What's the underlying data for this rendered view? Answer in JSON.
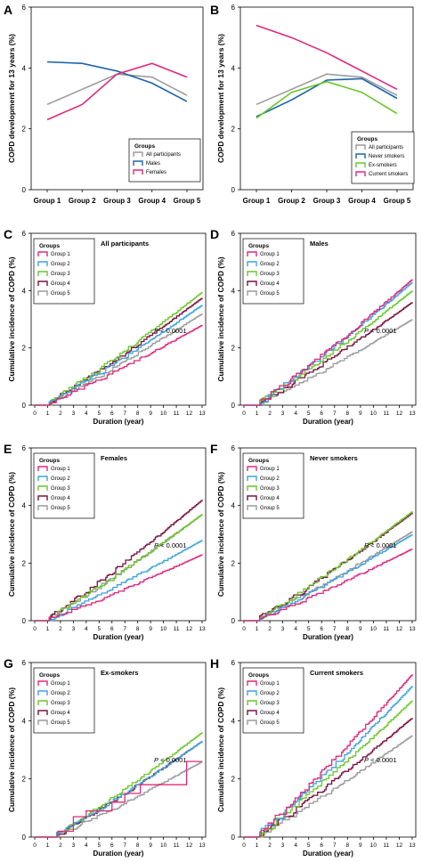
{
  "colors": {
    "all_participants": "#9a9a9a",
    "males": "#1a63a8",
    "females": "#e0287a",
    "never_smokers": "#1a63a8",
    "ex_smokers": "#6cc62a",
    "current_smokers": "#e0287a",
    "group1": "#e0287a",
    "group2": "#3da3dc",
    "group3": "#6cc62a",
    "group4": "#7a1040",
    "group5": "#9a9a9a"
  },
  "chart_data": [
    {
      "panel": "A",
      "type": "line",
      "ylabel": "COPD development for 13 years (%)",
      "categories": [
        "Group 1",
        "Group 2",
        "Group 3",
        "Group 4",
        "Group 5"
      ],
      "ylim": [
        0,
        6
      ],
      "yticks": [
        "0",
        "2",
        "4",
        "6"
      ],
      "legend": {
        "title": "Groups",
        "position": "bottom-right"
      },
      "series": [
        {
          "name": "All participants",
          "color_key": "all_participants",
          "values": [
            2.8,
            3.3,
            3.8,
            3.7,
            3.1
          ]
        },
        {
          "name": "Males",
          "color_key": "males",
          "values": [
            4.2,
            4.15,
            3.9,
            3.5,
            2.9
          ]
        },
        {
          "name": "Females",
          "color_key": "females",
          "values": [
            2.3,
            2.8,
            3.8,
            4.15,
            3.7
          ]
        }
      ]
    },
    {
      "panel": "B",
      "type": "line",
      "ylabel": "COPD development for 13 years (%)",
      "categories": [
        "Group 1",
        "Group 2",
        "Group 3",
        "Group 4",
        "Group 5"
      ],
      "ylim": [
        0,
        6
      ],
      "yticks": [
        "0",
        "2",
        "4",
        "6"
      ],
      "legend": {
        "title": "Groups",
        "position": "bottom-right"
      },
      "series": [
        {
          "name": "All participants",
          "color_key": "all_participants",
          "values": [
            2.8,
            3.3,
            3.8,
            3.7,
            3.1
          ]
        },
        {
          "name": "Never smokers",
          "color_key": "never_smokers",
          "values": [
            2.4,
            2.95,
            3.6,
            3.65,
            3.0
          ]
        },
        {
          "name": "Ex-smokers",
          "color_key": "ex_smokers",
          "values": [
            2.35,
            3.2,
            3.55,
            3.2,
            2.5
          ]
        },
        {
          "name": "Current smokers",
          "color_key": "current_smokers",
          "values": [
            5.4,
            5.0,
            4.5,
            3.9,
            3.3
          ]
        }
      ]
    },
    {
      "panel": "C",
      "type": "line",
      "subtitle": "All participants",
      "xlabel": "Duration (year)",
      "ylabel": "Cumulative incidence of COPD (%)",
      "xlim": [
        0,
        13
      ],
      "ylim": [
        0,
        6
      ],
      "xticks": [
        "0",
        "1",
        "2",
        "3",
        "4",
        "5",
        "6",
        "7",
        "8",
        "9",
        "10",
        "11",
        "12",
        "13"
      ],
      "yticks": [
        "0",
        "2",
        "4",
        "6"
      ],
      "annotation": "P < 0.0001",
      "legend": {
        "title": "Groups",
        "position": "top-left"
      },
      "series": [
        {
          "name": "Group 1",
          "color_key": "group1",
          "onset": 0.9,
          "final": 2.8
        },
        {
          "name": "Group 2",
          "color_key": "group2",
          "onset": 0.9,
          "final": 3.5
        },
        {
          "name": "Group 3",
          "color_key": "group3",
          "onset": 0.9,
          "final": 3.95
        },
        {
          "name": "Group 4",
          "color_key": "group4",
          "onset": 0.9,
          "final": 3.75
        },
        {
          "name": "Group 5",
          "color_key": "group5",
          "onset": 0.9,
          "final": 3.2
        }
      ]
    },
    {
      "panel": "D",
      "type": "line",
      "subtitle": "Males",
      "xlabel": "Duration (year)",
      "ylabel": "Cumulative incidence of COPD (%)",
      "xlim": [
        0,
        13
      ],
      "ylim": [
        0,
        6
      ],
      "xticks": [
        "0",
        "1",
        "2",
        "3",
        "4",
        "5",
        "6",
        "7",
        "8",
        "9",
        "10",
        "11",
        "12",
        "13"
      ],
      "yticks": [
        "0",
        "2",
        "4",
        "6"
      ],
      "annotation": "P < 0.0001",
      "legend": {
        "title": "Groups",
        "position": "top-left"
      },
      "series": [
        {
          "name": "Group 1",
          "color_key": "group1",
          "onset": 1.0,
          "final": 4.4
        },
        {
          "name": "Group 2",
          "color_key": "group2",
          "onset": 1.0,
          "final": 4.3
        },
        {
          "name": "Group 3",
          "color_key": "group3",
          "onset": 1.0,
          "final": 4.0
        },
        {
          "name": "Group 4",
          "color_key": "group4",
          "onset": 1.0,
          "final": 3.6
        },
        {
          "name": "Group 5",
          "color_key": "group5",
          "onset": 1.0,
          "final": 3.0
        }
      ]
    },
    {
      "panel": "E",
      "type": "line",
      "subtitle": "Females",
      "xlabel": "Duration (year)",
      "ylabel": "Cumulative incidence of COPD (%)",
      "xlim": [
        0,
        13
      ],
      "ylim": [
        0,
        6
      ],
      "xticks": [
        "0",
        "1",
        "2",
        "3",
        "4",
        "5",
        "6",
        "7",
        "8",
        "9",
        "10",
        "11",
        "12",
        "13"
      ],
      "yticks": [
        "0",
        "2",
        "4",
        "6"
      ],
      "annotation": "P < 0.0001",
      "legend": {
        "title": "Groups",
        "position": "top-left"
      },
      "series": [
        {
          "name": "Group 1",
          "color_key": "group1",
          "onset": 0.9,
          "final": 2.3
        },
        {
          "name": "Group 2",
          "color_key": "group2",
          "onset": 0.9,
          "final": 2.8
        },
        {
          "name": "Group 3",
          "color_key": "group3",
          "onset": 0.9,
          "final": 3.7
        },
        {
          "name": "Group 4",
          "color_key": "group4",
          "onset": 0.9,
          "final": 4.2
        },
        {
          "name": "Group 5",
          "color_key": "group5",
          "onset": 0.9,
          "final": 3.7
        }
      ]
    },
    {
      "panel": "F",
      "type": "line",
      "subtitle": "Never smokers",
      "xlabel": "Duration (year)",
      "ylabel": "Cumulative incidence of COPD (%)",
      "xlim": [
        0,
        13
      ],
      "ylim": [
        0,
        6
      ],
      "xticks": [
        "0",
        "1",
        "2",
        "3",
        "4",
        "5",
        "6",
        "7",
        "8",
        "9",
        "10",
        "11",
        "12",
        "13"
      ],
      "yticks": [
        "0",
        "2",
        "4",
        "6"
      ],
      "annotation": "P < 0.0001",
      "legend": {
        "title": "Groups",
        "position": "top-left"
      },
      "series": [
        {
          "name": "Group 1",
          "color_key": "group1",
          "onset": 1.0,
          "final": 2.5
        },
        {
          "name": "Group 2",
          "color_key": "group2",
          "onset": 1.0,
          "final": 3.0
        },
        {
          "name": "Group 3",
          "color_key": "group3",
          "onset": 1.0,
          "final": 3.8
        },
        {
          "name": "Group 4",
          "color_key": "group4",
          "onset": 1.0,
          "final": 3.75
        },
        {
          "name": "Group 5",
          "color_key": "group5",
          "onset": 1.0,
          "final": 3.1
        }
      ]
    },
    {
      "panel": "G",
      "type": "line",
      "subtitle": "Ex-smokers",
      "xlabel": "Duration (year)",
      "ylabel": "Cumulative incidence of COPD (%)",
      "xlim": [
        0,
        13
      ],
      "ylim": [
        0,
        6
      ],
      "xticks": [
        "0",
        "1",
        "2",
        "3",
        "4",
        "5",
        "6",
        "7",
        "8",
        "9",
        "10",
        "11",
        "12",
        "13"
      ],
      "yticks": [
        "0",
        "2",
        "4",
        "6"
      ],
      "annotation": "P < 0.0001",
      "legend": {
        "title": "Groups",
        "position": "top-left"
      },
      "series": [
        {
          "name": "Group 1",
          "color_key": "group1",
          "step_points": [
            [
              0,
              0
            ],
            [
              1.8,
              0
            ],
            [
              1.8,
              0.2
            ],
            [
              3,
              0.2
            ],
            [
              3,
              0.7
            ],
            [
              4,
              0.7
            ],
            [
              4,
              0.9
            ],
            [
              6,
              0.9
            ],
            [
              6,
              1.2
            ],
            [
              7,
              1.2
            ],
            [
              7,
              1.5
            ],
            [
              8.2,
              1.5
            ],
            [
              8.2,
              1.8
            ],
            [
              11.8,
              1.8
            ],
            [
              11.8,
              2.6
            ],
            [
              13,
              2.6
            ]
          ]
        },
        {
          "name": "Group 2",
          "color_key": "group2",
          "onset": 1.5,
          "final": 3.3
        },
        {
          "name": "Group 3",
          "color_key": "group3",
          "onset": 1.5,
          "final": 3.6
        },
        {
          "name": "Group 4",
          "color_key": "group4",
          "onset": 1.5,
          "final": 3.3
        },
        {
          "name": "Group 5",
          "color_key": "group5",
          "onset": 1.5,
          "final": 2.6
        }
      ]
    },
    {
      "panel": "H",
      "type": "line",
      "subtitle": "Current smokers",
      "xlabel": "Duration (year)",
      "ylabel": "Cumulative incidence of COPD (%)",
      "xlim": [
        0,
        13
      ],
      "ylim": [
        0,
        6
      ],
      "xticks": [
        "0",
        "1",
        "2",
        "3",
        "4",
        "5",
        "6",
        "7",
        "8",
        "9",
        "10",
        "11",
        "12",
        "13"
      ],
      "yticks": [
        "0",
        "2",
        "4",
        "6"
      ],
      "annotation": "P < 0.0001",
      "legend": {
        "title": "Groups",
        "position": "top-left"
      },
      "series": [
        {
          "name": "Group 1",
          "color_key": "group1",
          "onset": 1.0,
          "final": 5.6
        },
        {
          "name": "Group 2",
          "color_key": "group2",
          "onset": 1.0,
          "final": 5.2
        },
        {
          "name": "Group 3",
          "color_key": "group3",
          "onset": 1.0,
          "final": 4.7
        },
        {
          "name": "Group 4",
          "color_key": "group4",
          "onset": 1.0,
          "final": 4.1
        },
        {
          "name": "Group 5",
          "color_key": "group5",
          "onset": 1.0,
          "final": 3.5
        }
      ]
    }
  ]
}
